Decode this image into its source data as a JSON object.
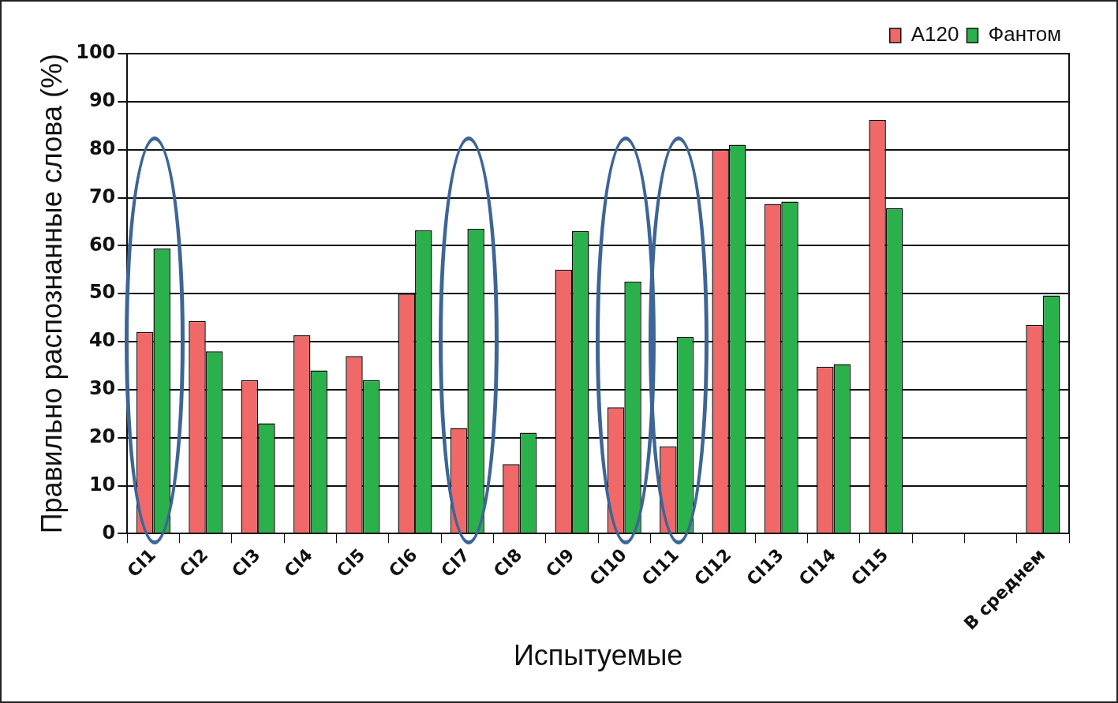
{
  "chart_data": {
    "type": "bar",
    "xlabel": "Испытуемые",
    "ylabel": "Правильно распознанные слова (%)",
    "categories": [
      "CI1",
      "CI2",
      "CI3",
      "CI4",
      "CI5",
      "CI6",
      "CI7",
      "CI8",
      "CI9",
      "CI10",
      "CI11",
      "CI12",
      "CI13",
      "CI14",
      "CI15",
      null,
      null,
      "В среднем"
    ],
    "series": [
      {
        "name": "A120",
        "color": "#f06868",
        "values": [
          42,
          44.3,
          32,
          41.3,
          37,
          50,
          22,
          14.5,
          55,
          26.3,
          18.2,
          80,
          68.7,
          34.8,
          86.2,
          null,
          null,
          43.5
        ]
      },
      {
        "name": "Фантом",
        "color": "#2bb14b",
        "values": [
          59.4,
          38,
          23,
          34,
          32,
          63.2,
          63.5,
          21,
          63,
          52.5,
          41,
          81,
          69.2,
          35.3,
          67.8,
          null,
          null,
          49.6
        ]
      }
    ],
    "ylim": [
      0,
      100
    ],
    "yticks": [
      0,
      10,
      20,
      30,
      40,
      50,
      60,
      70,
      80,
      90,
      100
    ],
    "grid": "y",
    "legend": "top right"
  }
}
